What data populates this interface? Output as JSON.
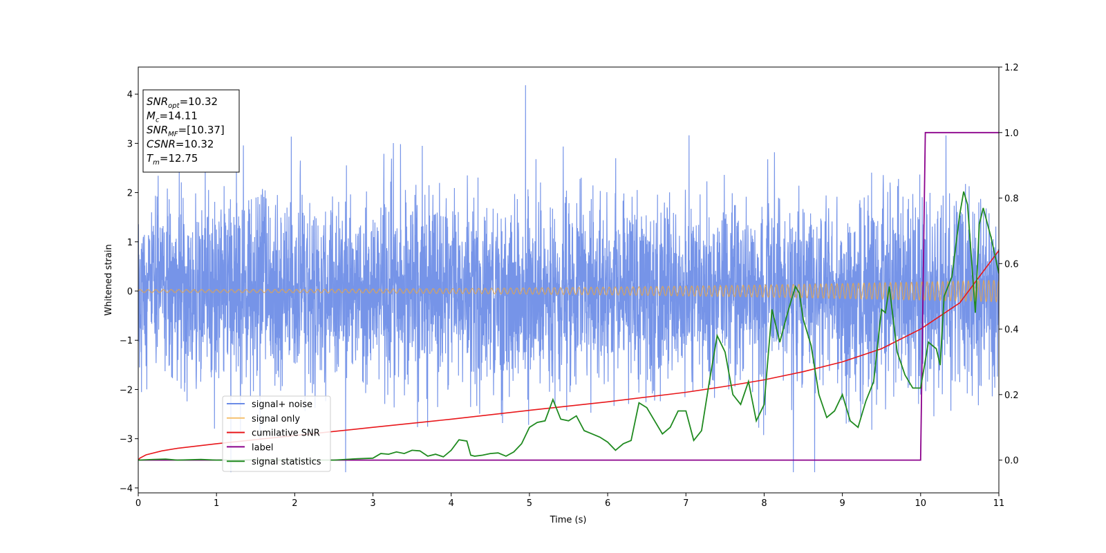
{
  "chart_data": {
    "type": "line",
    "xlabel": "Time (s)",
    "ylabel": "Whitened strain",
    "xlim": [
      0,
      11
    ],
    "ylim": [
      -4.1,
      4.55
    ],
    "y2lim": [
      -0.1,
      1.2
    ],
    "xticks": [
      "0",
      "1",
      "2",
      "3",
      "4",
      "5",
      "6",
      "7",
      "8",
      "9",
      "10",
      "11"
    ],
    "xtick_values": [
      0,
      1,
      2,
      3,
      4,
      5,
      6,
      7,
      8,
      9,
      10,
      11
    ],
    "yticks": [
      "−4",
      "−3",
      "−2",
      "−1",
      "0",
      "1",
      "2",
      "3",
      "4"
    ],
    "ytick_values": [
      -4,
      -3,
      -2,
      -1,
      0,
      1,
      2,
      3,
      4
    ],
    "y2ticks": [
      "0.0",
      "0.2",
      "0.4",
      "0.6",
      "0.8",
      "1.0",
      "1.2"
    ],
    "y2tick_values": [
      0,
      0.2,
      0.4,
      0.6,
      0.8,
      1.0,
      1.2
    ],
    "info_box": [
      {
        "sym": "SNR",
        "sub": "opt",
        "val": "=10.32"
      },
      {
        "sym": "M",
        "sub": "c",
        "val": "=14.11"
      },
      {
        "sym": "SNR",
        "sub": "MF",
        "val": "=[10.37]"
      },
      {
        "sym": "CSNR",
        "sub": "",
        "val": "=10.32"
      },
      {
        "sym": "T",
        "sub": "m",
        "val": "=12.75"
      }
    ],
    "legend_position": "lower-left",
    "legend": [
      {
        "label": "signal+ noise",
        "color": "#6a8be6"
      },
      {
        "label": "signal only",
        "color": "#f5c06e"
      },
      {
        "label": "cumilative SNR",
        "color": "#e8161a"
      },
      {
        "label": "label",
        "color": "#8b008b"
      },
      {
        "label": "signal statistics",
        "color": "#1f8a1f"
      }
    ],
    "series": [
      {
        "name": "signal+ noise",
        "axis": "left",
        "description": "noise band with std ~1.0 and peaks up to 4.2 (at t~4.95) and down to -3.7 (at t~2.65)",
        "std": 1.0,
        "max": 4.18,
        "min": -3.68,
        "color": "#6a8be6"
      },
      {
        "name": "signal only",
        "axis": "left",
        "description": "chirp oscillation around 0",
        "amp_start": 0.03,
        "amp_end": 0.22,
        "color": "#e6a64a"
      },
      {
        "name": "cumilative SNR",
        "axis": "right",
        "x": [
          0,
          0.02,
          0.1,
          0.3,
          0.5,
          1,
          2,
          3,
          4,
          5,
          6,
          7,
          7.5,
          8,
          8.5,
          9,
          9.5,
          10,
          10.5,
          11
        ],
        "y": [
          0,
          0.006,
          0.016,
          0.028,
          0.036,
          0.05,
          0.075,
          0.1,
          0.125,
          0.152,
          0.178,
          0.207,
          0.225,
          0.245,
          0.27,
          0.3,
          0.34,
          0.4,
          0.48,
          0.64
        ],
        "color": "#e8161a"
      },
      {
        "name": "label",
        "axis": "right",
        "x": [
          0,
          10.0,
          10.06,
          11
        ],
        "y": [
          0,
          0,
          1,
          1
        ],
        "color": "#8b008b"
      },
      {
        "name": "signal statistics",
        "axis": "right",
        "x": [
          0,
          0.2,
          0.35,
          0.5,
          0.8,
          1.0,
          1.5,
          2.0,
          2.5,
          2.8,
          3.0,
          3.1,
          3.2,
          3.3,
          3.4,
          3.5,
          3.6,
          3.7,
          3.8,
          3.9,
          4.0,
          4.1,
          4.2,
          4.25,
          4.3,
          4.4,
          4.5,
          4.6,
          4.7,
          4.8,
          4.9,
          5.0,
          5.1,
          5.2,
          5.3,
          5.4,
          5.5,
          5.6,
          5.7,
          5.8,
          5.9,
          6.0,
          6.1,
          6.2,
          6.3,
          6.4,
          6.5,
          6.6,
          6.7,
          6.8,
          6.9,
          7.0,
          7.1,
          7.2,
          7.3,
          7.4,
          7.5,
          7.6,
          7.7,
          7.8,
          7.9,
          8.0,
          8.1,
          8.2,
          8.3,
          8.4,
          8.45,
          8.5,
          8.6,
          8.7,
          8.8,
          8.9,
          9.0,
          9.1,
          9.2,
          9.3,
          9.4,
          9.5,
          9.55,
          9.6,
          9.7,
          9.8,
          9.9,
          10.0,
          10.1,
          10.2,
          10.25,
          10.3,
          10.4,
          10.5,
          10.55,
          10.6,
          10.7,
          10.75,
          10.8,
          10.9,
          11.0
        ],
        "y": [
          0,
          0.002,
          0.003,
          0.0,
          0.002,
          0.0,
          0.001,
          0.0,
          0.0,
          0.004,
          0.006,
          0.02,
          0.018,
          0.025,
          0.02,
          0.03,
          0.028,
          0.012,
          0.018,
          0.01,
          0.03,
          0.062,
          0.058,
          0.015,
          0.012,
          0.015,
          0.02,
          0.022,
          0.012,
          0.025,
          0.05,
          0.1,
          0.115,
          0.12,
          0.185,
          0.125,
          0.12,
          0.135,
          0.09,
          0.08,
          0.07,
          0.055,
          0.03,
          0.05,
          0.06,
          0.175,
          0.16,
          0.12,
          0.08,
          0.1,
          0.15,
          0.15,
          0.06,
          0.09,
          0.24,
          0.38,
          0.33,
          0.2,
          0.17,
          0.24,
          0.12,
          0.17,
          0.46,
          0.36,
          0.45,
          0.53,
          0.51,
          0.43,
          0.35,
          0.2,
          0.13,
          0.15,
          0.2,
          0.12,
          0.1,
          0.18,
          0.24,
          0.46,
          0.45,
          0.53,
          0.33,
          0.26,
          0.22,
          0.22,
          0.36,
          0.34,
          0.29,
          0.5,
          0.56,
          0.75,
          0.82,
          0.78,
          0.45,
          0.72,
          0.77,
          0.68,
          0.57
        ],
        "color": "#1f8a1f"
      }
    ]
  }
}
